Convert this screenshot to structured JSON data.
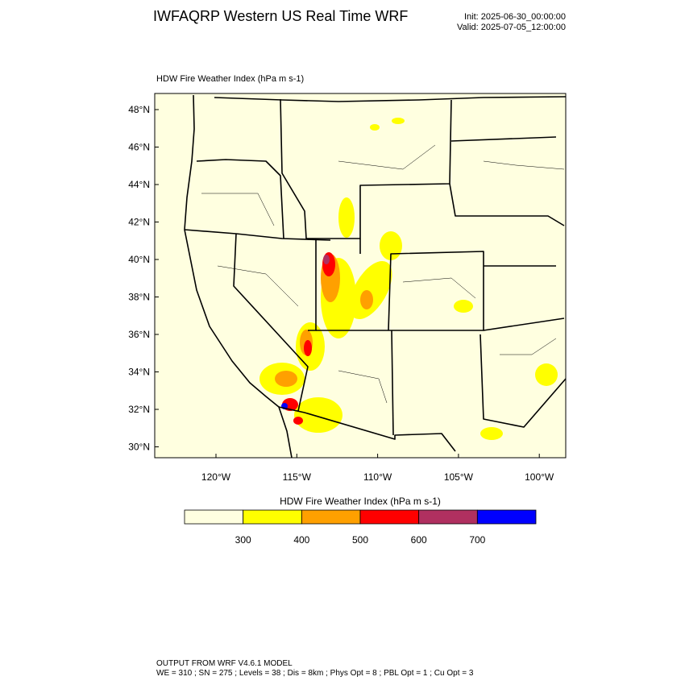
{
  "header": {
    "title": "IWFAQRP Western US Real Time WRF",
    "init": "Init: 2025-06-30_00:00:00",
    "valid": "Valid: 2025-07-05_12:00:00"
  },
  "map": {
    "title": "HDW Fire Weather Index   (hPa m s-1)",
    "lat_labels": [
      "48°N",
      "46°N",
      "44°N",
      "42°N",
      "40°N",
      "38°N",
      "36°N",
      "34°N",
      "32°N",
      "30°N"
    ],
    "lon_labels": [
      "120°W",
      "115°W",
      "110°W",
      "105°W",
      "100°W"
    ]
  },
  "colorbar": {
    "title": "HDW Fire Weather Index (hPa m s-1)",
    "levels": [
      300,
      400,
      500,
      600,
      700
    ],
    "colors": [
      "#ffffe0",
      "#ffff00",
      "#ffa000",
      "#ff0000",
      "#b03060",
      "#0000ff"
    ]
  },
  "footer": {
    "line1": "OUTPUT FROM WRF V4.6.1 MODEL",
    "line2": "WE = 310 ; SN = 275 ; Levels = 38 ; Dis = 8km ; Phys Opt = 8 ; PBL Opt = 1 ; Cu Opt = 3"
  }
}
